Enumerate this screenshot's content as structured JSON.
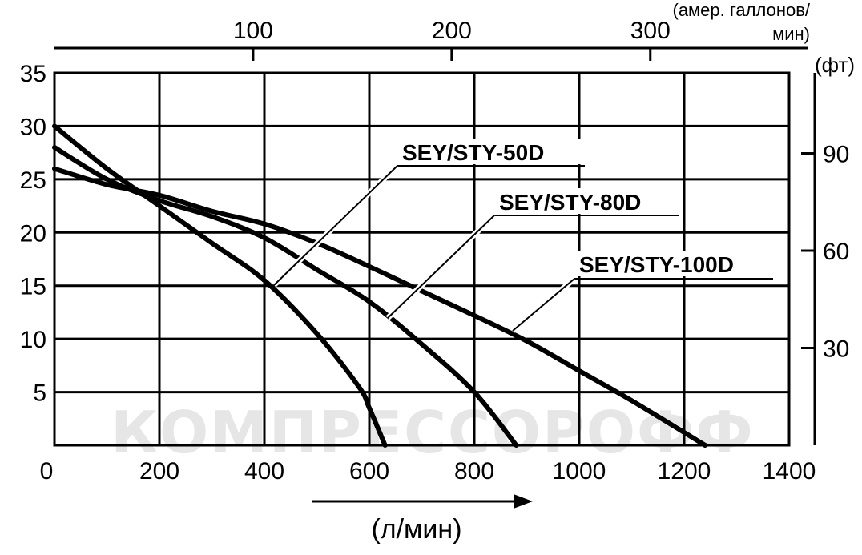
{
  "watermark": "КОМПРЕССОРОФФ",
  "chart_data": {
    "type": "line",
    "x_axis": {
      "label": "(л/мин)",
      "ticks": [
        0,
        200,
        400,
        600,
        800,
        1000,
        1200,
        1400
      ],
      "range": [
        0,
        1400
      ]
    },
    "y_axis_left": {
      "label": "",
      "ticks": [
        5,
        10,
        15,
        20,
        25,
        30,
        35
      ],
      "range": [
        0,
        35
      ],
      "grid": true
    },
    "y_axis_right": {
      "unit": "(фт)",
      "ticks": [
        30,
        60,
        90
      ]
    },
    "x_axis_top": {
      "unit_line1": "(амер. галлонов/",
      "unit_line2": "мин)",
      "ticks": [
        100,
        200,
        300
      ]
    },
    "series": [
      {
        "name": "SEY/STY-50D",
        "x": [
          0,
          100,
          200,
          300,
          400,
          500,
          580,
          600,
          630
        ],
        "y": [
          30,
          26,
          22.5,
          19,
          15.5,
          10.5,
          5.5,
          3.5,
          0
        ]
      },
      {
        "name": "SEY/STY-80D",
        "x": [
          0,
          100,
          200,
          300,
          400,
          500,
          600,
          700,
          800,
          880
        ],
        "y": [
          28,
          25,
          23,
          21.5,
          19.5,
          16.5,
          13.5,
          9.5,
          5,
          0
        ]
      },
      {
        "name": "SEY/STY-100D",
        "x": [
          0,
          100,
          200,
          300,
          400,
          500,
          600,
          700,
          800,
          900,
          1000,
          1100,
          1240
        ],
        "y": [
          26,
          24.5,
          23.5,
          22,
          20.8,
          19,
          16.8,
          14.5,
          12.2,
          9.8,
          7,
          4.2,
          0
        ]
      }
    ],
    "grid": true,
    "legend": "inline-callouts"
  }
}
